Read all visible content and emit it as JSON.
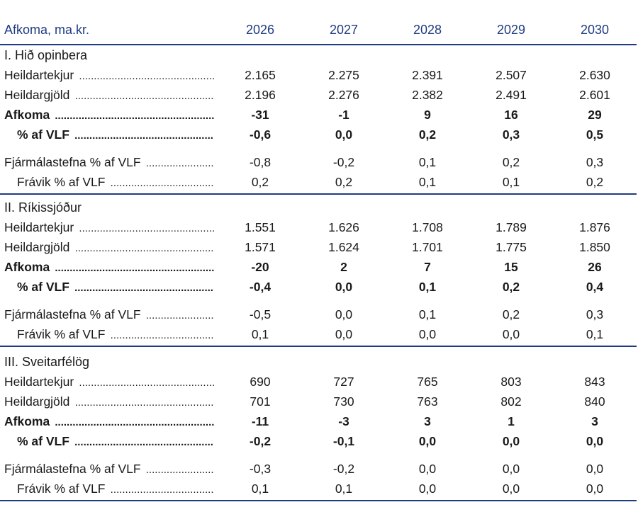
{
  "header": {
    "title": "Afkoma, ma.kr.",
    "years": [
      "2026",
      "2027",
      "2028",
      "2029",
      "2030"
    ]
  },
  "sections": [
    {
      "title": "I. Hið opinbera",
      "heildartekjur": [
        "2.165",
        "2.275",
        "2.391",
        "2.507",
        "2.630"
      ],
      "heildargjold": [
        "2.196",
        "2.276",
        "2.382",
        "2.491",
        "2.601"
      ],
      "afkoma": [
        "-31",
        "-1",
        "9",
        "16",
        "29"
      ],
      "pct_vlf": [
        "-0,6",
        "0,0",
        "0,2",
        "0,3",
        "0,5"
      ],
      "fjarmalastefna": [
        "-0,8",
        "-0,2",
        "0,1",
        "0,2",
        "0,3"
      ],
      "fravik": [
        "0,2",
        "0,2",
        "0,1",
        "0,1",
        "0,2"
      ]
    },
    {
      "title": "II. Ríkissjóður",
      "heildartekjur": [
        "1.551",
        "1.626",
        "1.708",
        "1.789",
        "1.876"
      ],
      "heildargjold": [
        "1.571",
        "1.624",
        "1.701",
        "1.775",
        "1.850"
      ],
      "afkoma": [
        "-20",
        "2",
        "7",
        "15",
        "26"
      ],
      "pct_vlf": [
        "-0,4",
        "0,0",
        "0,1",
        "0,2",
        "0,4"
      ],
      "fjarmalastefna": [
        "-0,5",
        "0,0",
        "0,1",
        "0,2",
        "0,3"
      ],
      "fravik": [
        "0,1",
        "0,0",
        "0,0",
        "0,0",
        "0,1"
      ]
    },
    {
      "title": "III. Sveitarfélög",
      "heildartekjur": [
        "690",
        "727",
        "765",
        "803",
        "843"
      ],
      "heildargjold": [
        "701",
        "730",
        "763",
        "802",
        "840"
      ],
      "afkoma": [
        "-11",
        "-3",
        "3",
        "1",
        "3"
      ],
      "pct_vlf": [
        "-0,2",
        "-0,1",
        "0,0",
        "0,0",
        "0,0"
      ],
      "fjarmalastefna": [
        "-0,3",
        "-0,2",
        "0,0",
        "0,0",
        "0,0"
      ],
      "fravik": [
        "0,1",
        "0,1",
        "0,0",
        "0,0",
        "0,0"
      ]
    }
  ],
  "labels": {
    "heildartekjur": "Heildartekjur",
    "heildargjold": "Heildargjöld",
    "afkoma": "Afkoma",
    "pct_vlf": "% af VLF",
    "fjarmalastefna": "Fjármálastefna % af VLF",
    "fravik": "Frávik % af VLF"
  },
  "colors": {
    "accent": "#1f3b82",
    "text": "#1a1a1a"
  }
}
